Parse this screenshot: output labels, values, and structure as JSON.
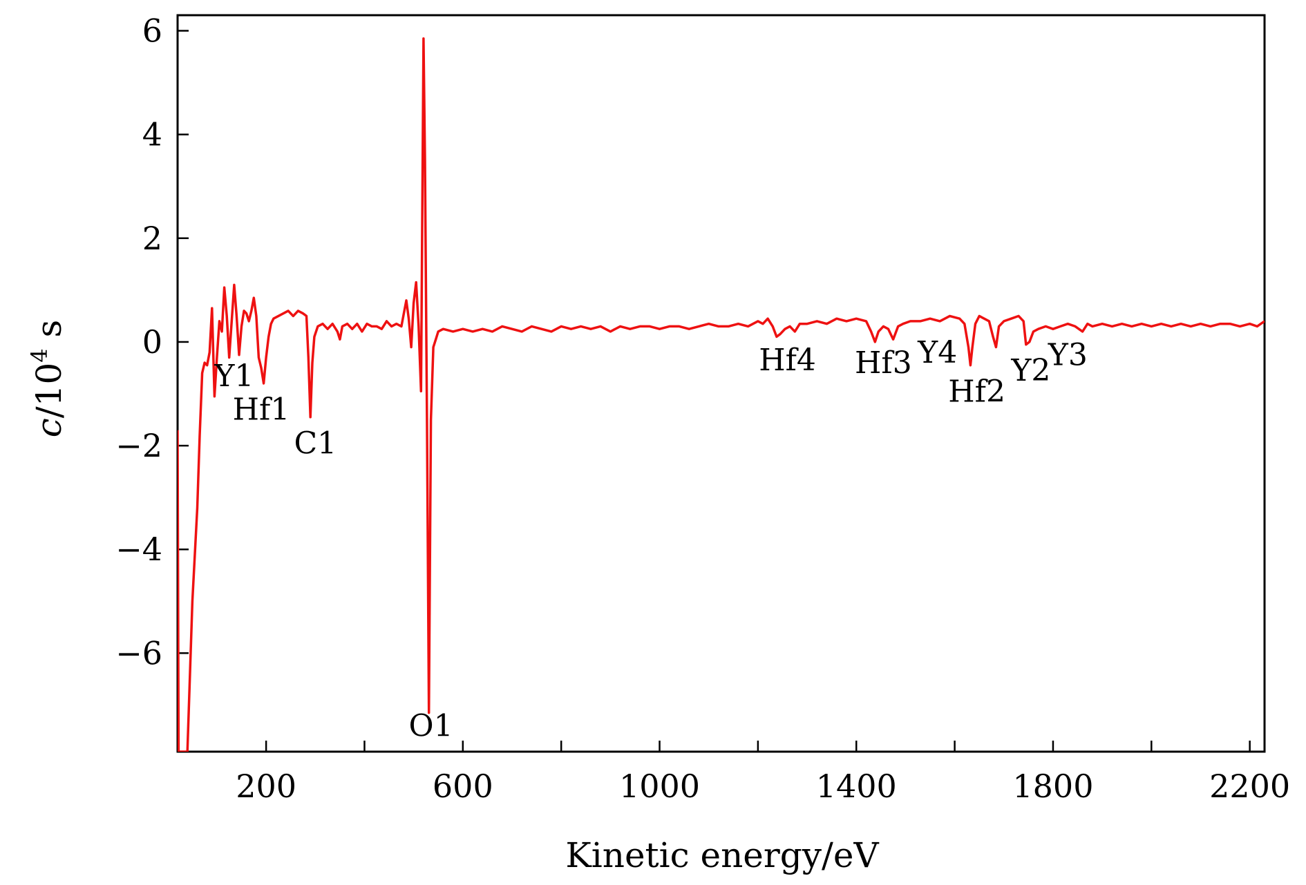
{
  "chart_data": {
    "type": "line",
    "title": "",
    "xlabel": "Kinetic energy/eV",
    "ylabel": "c/10^4 s",
    "ylabel_parts": {
      "var": "c",
      "base": "/10",
      "exp": "4",
      "unit": " s"
    },
    "xlim": [
      20,
      2230
    ],
    "ylim": [
      -7.9,
      6.3
    ],
    "xticks_major": [
      200,
      600,
      1000,
      1400,
      1800,
      2200
    ],
    "xtick_labels": [
      "200",
      "600",
      "1000",
      "1400",
      "1800",
      "2200"
    ],
    "xticks_minor": [
      400,
      800,
      1200,
      1600,
      2000
    ],
    "yticks": [
      6,
      4,
      2,
      0,
      -2,
      -4,
      -6
    ],
    "ytick_labels": [
      "6",
      "4",
      "2",
      "0",
      "−2",
      "−4",
      "−6"
    ],
    "grid": false,
    "line_color": "#ee1111",
    "series": [
      {
        "points": [
          [
            20,
            -1.7
          ],
          [
            22,
            -7.9
          ],
          [
            40,
            -7.9
          ],
          [
            50,
            -5.0
          ],
          [
            60,
            -3.2
          ],
          [
            65,
            -1.8
          ],
          [
            70,
            -0.6
          ],
          [
            75,
            -0.4
          ],
          [
            80,
            -0.45
          ],
          [
            85,
            -0.2
          ],
          [
            90,
            0.65
          ],
          [
            95,
            -1.05
          ],
          [
            100,
            -0.3
          ],
          [
            105,
            0.4
          ],
          [
            110,
            0.2
          ],
          [
            115,
            1.05
          ],
          [
            120,
            0.5
          ],
          [
            125,
            -0.3
          ],
          [
            130,
            0.4
          ],
          [
            135,
            1.1
          ],
          [
            140,
            0.5
          ],
          [
            145,
            -0.25
          ],
          [
            150,
            0.3
          ],
          [
            155,
            0.6
          ],
          [
            160,
            0.55
          ],
          [
            165,
            0.4
          ],
          [
            170,
            0.6
          ],
          [
            175,
            0.85
          ],
          [
            180,
            0.5
          ],
          [
            185,
            -0.3
          ],
          [
            190,
            -0.5
          ],
          [
            195,
            -0.8
          ],
          [
            200,
            -0.3
          ],
          [
            205,
            0.1
          ],
          [
            210,
            0.35
          ],
          [
            215,
            0.45
          ],
          [
            225,
            0.5
          ],
          [
            235,
            0.55
          ],
          [
            245,
            0.6
          ],
          [
            255,
            0.5
          ],
          [
            265,
            0.6
          ],
          [
            275,
            0.55
          ],
          [
            282,
            0.5
          ],
          [
            286,
            -0.3
          ],
          [
            290,
            -1.45
          ],
          [
            294,
            -0.4
          ],
          [
            298,
            0.1
          ],
          [
            305,
            0.3
          ],
          [
            315,
            0.35
          ],
          [
            325,
            0.25
          ],
          [
            335,
            0.35
          ],
          [
            345,
            0.2
          ],
          [
            350,
            0.05
          ],
          [
            355,
            0.3
          ],
          [
            365,
            0.35
          ],
          [
            375,
            0.25
          ],
          [
            385,
            0.35
          ],
          [
            395,
            0.2
          ],
          [
            405,
            0.35
          ],
          [
            415,
            0.3
          ],
          [
            425,
            0.3
          ],
          [
            435,
            0.25
          ],
          [
            445,
            0.4
          ],
          [
            455,
            0.3
          ],
          [
            465,
            0.35
          ],
          [
            475,
            0.3
          ],
          [
            480,
            0.55
          ],
          [
            485,
            0.8
          ],
          [
            490,
            0.45
          ],
          [
            495,
            -0.1
          ],
          [
            500,
            0.75
          ],
          [
            505,
            1.15
          ],
          [
            510,
            0.3
          ],
          [
            515,
            -0.95
          ],
          [
            520,
            5.85
          ],
          [
            523,
            3.5
          ],
          [
            527,
            -1.5
          ],
          [
            531,
            -7.15
          ],
          [
            535,
            -1.5
          ],
          [
            540,
            -0.1
          ],
          [
            545,
            0.05
          ],
          [
            550,
            0.2
          ],
          [
            560,
            0.25
          ],
          [
            580,
            0.2
          ],
          [
            600,
            0.25
          ],
          [
            620,
            0.2
          ],
          [
            640,
            0.25
          ],
          [
            660,
            0.2
          ],
          [
            680,
            0.3
          ],
          [
            700,
            0.25
          ],
          [
            720,
            0.2
          ],
          [
            740,
            0.3
          ],
          [
            760,
            0.25
          ],
          [
            780,
            0.2
          ],
          [
            800,
            0.3
          ],
          [
            820,
            0.25
          ],
          [
            840,
            0.3
          ],
          [
            860,
            0.25
          ],
          [
            880,
            0.3
          ],
          [
            900,
            0.2
          ],
          [
            920,
            0.3
          ],
          [
            940,
            0.25
          ],
          [
            960,
            0.3
          ],
          [
            980,
            0.3
          ],
          [
            1000,
            0.25
          ],
          [
            1020,
            0.3
          ],
          [
            1040,
            0.3
          ],
          [
            1060,
            0.25
          ],
          [
            1080,
            0.3
          ],
          [
            1100,
            0.35
          ],
          [
            1120,
            0.3
          ],
          [
            1140,
            0.3
          ],
          [
            1160,
            0.35
          ],
          [
            1180,
            0.3
          ],
          [
            1200,
            0.4
          ],
          [
            1210,
            0.35
          ],
          [
            1220,
            0.45
          ],
          [
            1230,
            0.3
          ],
          [
            1238,
            0.1
          ],
          [
            1245,
            0.15
          ],
          [
            1255,
            0.25
          ],
          [
            1265,
            0.3
          ],
          [
            1275,
            0.2
          ],
          [
            1285,
            0.35
          ],
          [
            1300,
            0.35
          ],
          [
            1320,
            0.4
          ],
          [
            1340,
            0.35
          ],
          [
            1360,
            0.45
          ],
          [
            1380,
            0.4
          ],
          [
            1400,
            0.45
          ],
          [
            1420,
            0.4
          ],
          [
            1430,
            0.2
          ],
          [
            1438,
            0.0
          ],
          [
            1445,
            0.2
          ],
          [
            1455,
            0.3
          ],
          [
            1465,
            0.25
          ],
          [
            1475,
            0.05
          ],
          [
            1485,
            0.3
          ],
          [
            1495,
            0.35
          ],
          [
            1510,
            0.4
          ],
          [
            1530,
            0.4
          ],
          [
            1550,
            0.45
          ],
          [
            1570,
            0.4
          ],
          [
            1590,
            0.5
          ],
          [
            1610,
            0.45
          ],
          [
            1620,
            0.35
          ],
          [
            1628,
            -0.1
          ],
          [
            1632,
            -0.45
          ],
          [
            1636,
            -0.1
          ],
          [
            1642,
            0.35
          ],
          [
            1650,
            0.5
          ],
          [
            1660,
            0.45
          ],
          [
            1670,
            0.4
          ],
          [
            1678,
            0.1
          ],
          [
            1684,
            -0.1
          ],
          [
            1690,
            0.3
          ],
          [
            1700,
            0.4
          ],
          [
            1715,
            0.45
          ],
          [
            1730,
            0.5
          ],
          [
            1740,
            0.4
          ],
          [
            1745,
            -0.05
          ],
          [
            1752,
            0.0
          ],
          [
            1760,
            0.2
          ],
          [
            1770,
            0.25
          ],
          [
            1785,
            0.3
          ],
          [
            1800,
            0.25
          ],
          [
            1815,
            0.3
          ],
          [
            1830,
            0.35
          ],
          [
            1845,
            0.3
          ],
          [
            1860,
            0.2
          ],
          [
            1870,
            0.35
          ],
          [
            1880,
            0.3
          ],
          [
            1900,
            0.35
          ],
          [
            1920,
            0.3
          ],
          [
            1940,
            0.35
          ],
          [
            1960,
            0.3
          ],
          [
            1980,
            0.35
          ],
          [
            2000,
            0.3
          ],
          [
            2020,
            0.35
          ],
          [
            2040,
            0.3
          ],
          [
            2060,
            0.35
          ],
          [
            2080,
            0.3
          ],
          [
            2100,
            0.35
          ],
          [
            2120,
            0.3
          ],
          [
            2140,
            0.35
          ],
          [
            2160,
            0.35
          ],
          [
            2180,
            0.3
          ],
          [
            2200,
            0.35
          ],
          [
            2215,
            0.3
          ],
          [
            2230,
            0.4
          ]
        ]
      }
    ],
    "annotations": [
      {
        "text": "Y1",
        "x": 135,
        "y": -0.85
      },
      {
        "text": "Hf1",
        "x": 190,
        "y": -1.5
      },
      {
        "text": "C1",
        "x": 300,
        "y": -2.15
      },
      {
        "text": "O1",
        "x": 535,
        "y": -7.6
      },
      {
        "text": "Hf4",
        "x": 1260,
        "y": -0.55
      },
      {
        "text": "Hf3",
        "x": 1455,
        "y": -0.6
      },
      {
        "text": "Y4",
        "x": 1565,
        "y": -0.4
      },
      {
        "text": "Hf2",
        "x": 1645,
        "y": -1.15
      },
      {
        "text": "Y2",
        "x": 1755,
        "y": -0.75
      },
      {
        "text": "Y3",
        "x": 1830,
        "y": -0.45
      }
    ]
  }
}
